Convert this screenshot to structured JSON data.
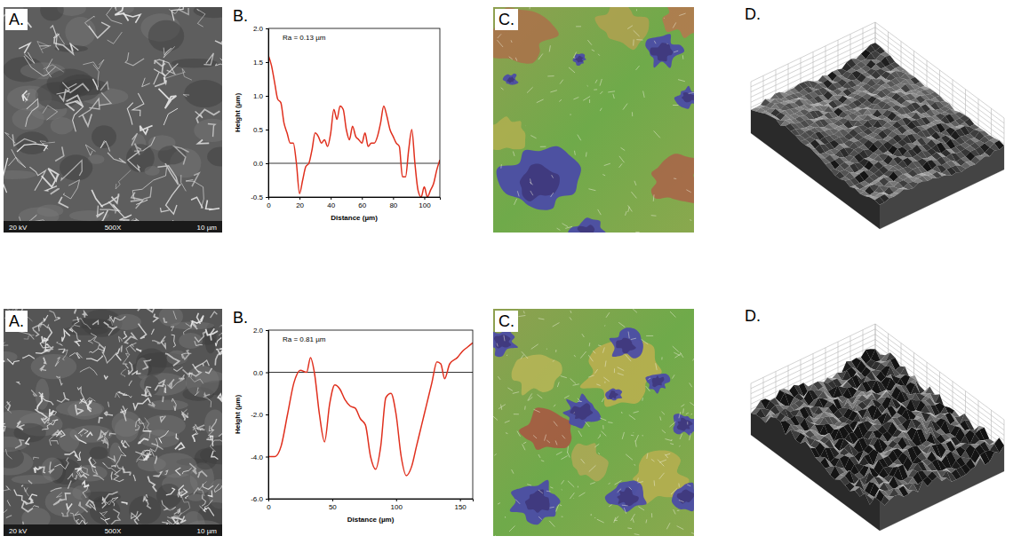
{
  "chart_data": [
    {
      "type": "line",
      "color": "#e0301e",
      "annotation": "Ra = 0.13 µm",
      "x_label": "Distance (µm)",
      "y_label": "Height (µm)",
      "x": [
        0,
        2,
        4,
        6,
        8,
        10,
        12,
        14,
        16,
        18,
        20,
        22,
        24,
        26,
        28,
        30,
        32,
        34,
        36,
        38,
        40,
        42,
        44,
        46,
        48,
        50,
        52,
        54,
        56,
        58,
        60,
        62,
        64,
        66,
        68,
        70,
        72,
        74,
        76,
        78,
        80,
        82,
        84,
        86,
        88,
        90,
        92,
        94,
        96,
        98,
        100,
        102,
        104,
        106,
        108,
        110
      ],
      "values": [
        1.6,
        1.45,
        1.2,
        0.95,
        0.9,
        0.6,
        0.45,
        0.3,
        0.3,
        0.0,
        -0.45,
        -0.25,
        -0.05,
        0.0,
        0.2,
        0.45,
        0.4,
        0.3,
        0.35,
        0.25,
        0.45,
        0.8,
        0.65,
        0.85,
        0.8,
        0.5,
        0.35,
        0.55,
        0.4,
        0.35,
        0.3,
        0.45,
        0.25,
        0.3,
        0.3,
        0.4,
        0.6,
        0.85,
        0.7,
        0.5,
        0.4,
        0.3,
        0.25,
        -0.2,
        -0.2,
        0.2,
        0.5,
        0.0,
        -0.4,
        -0.5,
        -0.35,
        -0.5,
        -0.4,
        -0.3,
        -0.1,
        0.05
      ],
      "xlim": [
        0,
        110
      ],
      "xticks": [
        0,
        20,
        40,
        60,
        80,
        100
      ],
      "ylim": [
        -0.5,
        2.0
      ],
      "yticks": [
        -0.5,
        {
          "value": 0,
          "label": "0.0"
        },
        0.5,
        {
          "value": 1,
          "label": "1.0"
        },
        1.5,
        {
          "value": 2,
          "label": "2.0"
        }
      ]
    },
    {
      "type": "line",
      "color": "#e0301e",
      "annotation": "Ra = 0.81 µm",
      "x_label": "Distance (µm)",
      "y_label": "Height (µm)",
      "x": [
        0,
        5,
        10,
        15,
        20,
        25,
        30,
        33,
        36,
        40,
        44,
        48,
        52,
        56,
        60,
        64,
        68,
        72,
        76,
        80,
        84,
        88,
        92,
        96,
        100,
        104,
        108,
        112,
        116,
        120,
        124,
        128,
        132,
        135,
        138,
        142,
        148,
        152,
        156,
        160
      ],
      "values": [
        -4.0,
        -4.0,
        -3.5,
        -2.0,
        -0.5,
        0.1,
        0.0,
        0.7,
        0.0,
        -2.0,
        -3.3,
        -1.5,
        -0.6,
        -0.8,
        -1.3,
        -1.6,
        -1.7,
        -2.2,
        -2.5,
        -4.0,
        -4.6,
        -3.5,
        -1.2,
        -1.0,
        -2.0,
        -4.0,
        -4.9,
        -4.5,
        -3.5,
        -2.5,
        -1.5,
        -0.5,
        0.5,
        0.4,
        -0.3,
        0.4,
        0.7,
        1.0,
        1.2,
        1.4
      ],
      "xlim": [
        0,
        160
      ],
      "xticks": [
        0,
        50,
        100,
        150
      ],
      "ylim": [
        -6.0,
        2.0
      ],
      "yticks": [
        {
          "value": -6,
          "label": "-6.0"
        },
        {
          "value": -4,
          "label": "-4.0"
        },
        {
          "value": -2,
          "label": "-2.0"
        },
        {
          "value": 0,
          "label": "0.0"
        },
        {
          "value": 2,
          "label": "2.0"
        }
      ]
    }
  ],
  "panels": [
    {
      "labels": [
        "A.",
        "B.",
        "C.",
        "D."
      ],
      "sem_caption": [
        "20 kV",
        "500X",
        "10 µm"
      ]
    },
    {
      "labels": [
        "A.",
        "B.",
        "C.",
        "D."
      ],
      "sem_caption": [
        "20 kV",
        "500X",
        "10 µm"
      ]
    }
  ]
}
